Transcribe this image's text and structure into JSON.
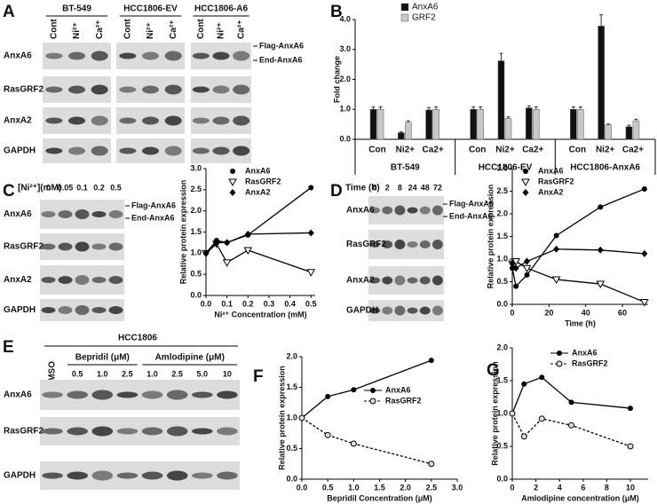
{
  "blots": [
    {
      "letter": "A",
      "groups": [
        {
          "label": "BT-549",
          "lanes": [
            "Cont",
            "Ni²⁺",
            "Ca²⁺"
          ]
        },
        {
          "label": "HCC1806-EV",
          "lanes": [
            "Cont",
            "Ni²⁺",
            "Ca²⁺"
          ]
        },
        {
          "label": "HCC1806-A6",
          "lanes": [
            "Cont",
            "Ni²⁺",
            "Ca²⁺"
          ]
        }
      ],
      "rows": [
        "AnxA6",
        "RasGRF2",
        "AnxA2",
        "GAPDH"
      ],
      "annotations": [
        "Flag-AnxA6",
        "End-AnxA6"
      ]
    },
    {
      "letter": "C",
      "header": "[Ni²⁺](mM)",
      "lanes": [
        "0",
        "0.05",
        "0.1",
        "0.2",
        "0.5"
      ],
      "rows": [
        "AnxA6",
        "RasGRF2",
        "AnxA2",
        "GAPDH"
      ],
      "annotations": [
        "Flag-AnxA6",
        "End-AnxA6"
      ]
    },
    {
      "letter": "D",
      "header": "Time (h)",
      "lanes": [
        "0",
        "2",
        "8",
        "24",
        "48",
        "72"
      ],
      "rows": [
        "AnxA6",
        "RasGRF2",
        "AnxA2",
        "GAPDH"
      ],
      "annotations": [
        "Flag-AnxA6",
        "End-AnxA6"
      ]
    },
    {
      "letter": "E",
      "header": "HCC1806",
      "control_lane": "DMSO",
      "groups": [
        {
          "label": "Bepridil (μM)",
          "lanes": [
            "0.5",
            "1.0",
            "2.5"
          ]
        },
        {
          "label": "Amlodipine (μM)",
          "lanes": [
            "1.0",
            "2.5",
            "5.0",
            "10"
          ]
        }
      ],
      "rows": [
        "AnxA6",
        "RasGRF2",
        "GAPDH"
      ]
    }
  ],
  "chart_data": [
    {
      "type": "bar",
      "letter": "B",
      "y_label": "Fold change",
      "categories": [
        "Con",
        "Ni2+",
        "Ca2+",
        "Con",
        "Ni2+",
        "Ca2+",
        "Con",
        "Ni2+",
        "Ca2+"
      ],
      "group_labels": [
        "BT-549",
        "HCC1806-EV",
        "HCC1806-AnxA6"
      ],
      "series": [
        {
          "name": "AnxA6",
          "color": "#111111",
          "values": [
            1.0,
            0.22,
            0.98,
            1.0,
            2.62,
            1.05,
            1.0,
            3.78,
            0.42
          ],
          "errors": [
            0.08,
            0.03,
            0.08,
            0.08,
            0.25,
            0.07,
            0.08,
            0.38,
            0.05
          ]
        },
        {
          "name": "GRF2",
          "color": "#c8c8c8",
          "values": [
            1.0,
            0.57,
            1.0,
            1.0,
            0.7,
            1.0,
            1.0,
            0.48,
            0.62
          ],
          "errors": [
            0.08,
            0.05,
            0.08,
            0.08,
            0.05,
            0.08,
            0.08,
            0.03,
            0.05
          ]
        }
      ],
      "ylim": [
        0,
        4.0
      ],
      "yticks": [
        {
          "value": 0,
          "label": "0.0"
        },
        {
          "value": 1,
          "label": "1.0"
        },
        {
          "value": 2,
          "label": "2.0"
        },
        {
          "value": 3,
          "label": "3.0"
        },
        {
          "value": 4,
          "label": "4.0"
        }
      ]
    },
    {
      "type": "line",
      "x_label": "Ni²⁺ Concentration (mM)",
      "y_label": "Relative protein expression",
      "x": [
        0,
        0.05,
        0.1,
        0.2,
        0.5
      ],
      "series": [
        {
          "name": "AnxA6",
          "color": "#000000",
          "marker": "circle",
          "values": [
            1.0,
            1.3,
            1.25,
            1.43,
            2.55
          ]
        },
        {
          "name": "RasGRF2",
          "color": "#000000",
          "marker": "triangle",
          "values": [
            1.0,
            1.22,
            0.78,
            1.07,
            0.55
          ]
        },
        {
          "name": "AnxA2",
          "color": "#000000",
          "marker": "diamond",
          "values": [
            1.0,
            1.25,
            1.25,
            1.45,
            1.48
          ]
        }
      ],
      "xlim": [
        0,
        0.52
      ],
      "xticks": [
        {
          "value": 0,
          "label": "0.0"
        },
        {
          "value": 0.1,
          "label": "0.1"
        },
        {
          "value": 0.2,
          "label": "0.2"
        },
        {
          "value": 0.3,
          "label": "0.3"
        },
        {
          "value": 0.4,
          "label": "0.4"
        },
        {
          "value": 0.5,
          "label": "0.5"
        }
      ],
      "ylim": [
        0,
        3.0
      ],
      "yticks": [
        {
          "value": 0,
          "label": "0.0"
        },
        {
          "value": 0.5,
          "label": "0.5"
        },
        {
          "value": 1,
          "label": "1.0"
        },
        {
          "value": 1.5,
          "label": "1.5"
        },
        {
          "value": 2,
          "label": "2.0"
        },
        {
          "value": 2.5,
          "label": "2.5"
        },
        {
          "value": 3,
          "label": "3.0"
        }
      ]
    },
    {
      "type": "line",
      "x_label": "Time (h)",
      "y_label": "Relative protein expression",
      "x": [
        0,
        2,
        8,
        24,
        48,
        72
      ],
      "series": [
        {
          "name": "AnxA6",
          "color": "#000000",
          "marker": "circle",
          "values": [
            0.8,
            0.4,
            0.65,
            1.52,
            2.15,
            2.55
          ]
        },
        {
          "name": "RasGRF2",
          "color": "#000000",
          "marker": "triangle",
          "values": [
            0.9,
            0.95,
            0.8,
            0.55,
            0.45,
            0.05
          ]
        },
        {
          "name": "AnxA2",
          "color": "#000000",
          "marker": "diamond",
          "values": [
            0.9,
            0.8,
            0.95,
            1.22,
            1.2,
            1.12
          ]
        }
      ],
      "xlim": [
        0,
        74
      ],
      "xticks": [
        0,
        20,
        40,
        60
      ],
      "ylim": [
        0,
        3.0
      ],
      "yticks": [
        {
          "value": 0,
          "label": "0.0"
        },
        {
          "value": 0.5,
          "label": "0.5"
        },
        {
          "value": 1,
          "label": "1.0"
        },
        {
          "value": 1.5,
          "label": "1.5"
        },
        {
          "value": 2,
          "label": "2.0"
        },
        {
          "value": 2.5,
          "label": "2.5"
        },
        {
          "value": 3,
          "label": "3.0"
        }
      ]
    },
    {
      "type": "line",
      "letter": "F",
      "x_label": "Bepridil Concentration (μM)",
      "y_label": "Relative protein expression",
      "x": [
        0,
        0.5,
        1.0,
        2.5
      ],
      "series": [
        {
          "name": "AnxA6",
          "color": "#000000",
          "marker": "circle",
          "values": [
            1.0,
            1.35,
            1.46,
            1.94
          ]
        },
        {
          "name": "RasGRF2",
          "color": "#000000",
          "marker": "open-circle",
          "dash": true,
          "values": [
            1.0,
            0.72,
            0.58,
            0.25
          ]
        }
      ],
      "xlim": [
        0,
        3.0
      ],
      "xticks": [
        {
          "value": 0,
          "label": "0.0"
        },
        {
          "value": 0.5,
          "label": "0.5"
        },
        {
          "value": 1,
          "label": "1.0"
        },
        {
          "value": 1.5,
          "label": "1.5"
        },
        {
          "value": 2,
          "label": "2.0"
        },
        {
          "value": 2.5,
          "label": "2.5"
        },
        {
          "value": 3,
          "label": "3.0"
        }
      ],
      "ylim": [
        0,
        2.0
      ],
      "yticks": [
        {
          "value": 0,
          "label": "0.0"
        },
        {
          "value": 0.5,
          "label": "0.5"
        },
        {
          "value": 1,
          "label": "1.0"
        },
        {
          "value": 1.5,
          "label": "1.5"
        },
        {
          "value": 2,
          "label": "2.0"
        }
      ]
    },
    {
      "type": "line",
      "letter": "G",
      "x_label": "Amlodipine concentration (μM)",
      "y_label": "Relative protein expression",
      "x": [
        0,
        1,
        2.5,
        5,
        10
      ],
      "series": [
        {
          "name": "AnxA6",
          "color": "#000000",
          "marker": "circle",
          "values": [
            1.0,
            1.45,
            1.55,
            1.17,
            1.08
          ]
        },
        {
          "name": "RasGRF2",
          "color": "#000000",
          "marker": "open-circle",
          "dash": true,
          "values": [
            1.0,
            0.65,
            0.92,
            0.82,
            0.5
          ]
        }
      ],
      "xlim": [
        0,
        11.5
      ],
      "xticks": [
        0,
        2,
        4,
        6,
        8,
        10
      ],
      "ylim": [
        0,
        2.0
      ],
      "yticks": [
        {
          "value": 0,
          "label": "0.0"
        },
        {
          "value": 0.5,
          "label": "0.5"
        },
        {
          "value": 1,
          "label": "1.0"
        },
        {
          "value": 1.5,
          "label": "1.5"
        },
        {
          "value": 2,
          "label": "2.0"
        }
      ]
    }
  ]
}
